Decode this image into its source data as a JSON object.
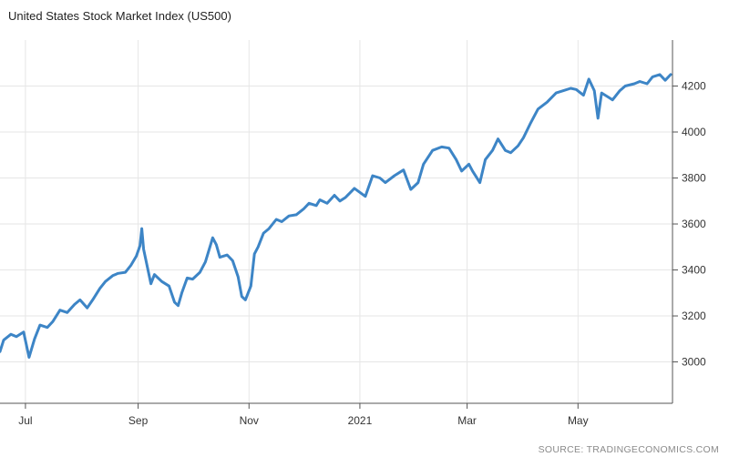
{
  "chart_data": {
    "type": "line",
    "title": "United States Stock Market Index (US500)",
    "source": "SOURCE: TRADINGECONOMICS.COM",
    "xlabel": "",
    "ylabel": "",
    "x_ticks": [
      {
        "label": "Jul",
        "date": "2020-07-01"
      },
      {
        "label": "Sep",
        "date": "2020-09-01"
      },
      {
        "label": "Nov",
        "date": "2020-11-01"
      },
      {
        "label": "2021",
        "date": "2021-01-01"
      },
      {
        "label": "Mar",
        "date": "2021-03-01"
      },
      {
        "label": "May",
        "date": "2021-05-01"
      }
    ],
    "y_ticks": [
      3000,
      3200,
      3400,
      3600,
      3800,
      4000,
      4200
    ],
    "xlim": [
      "2020-06-17",
      "2021-06-22"
    ],
    "ylim": [
      2820,
      4400
    ],
    "grid": true,
    "y_axis_side": "right",
    "line_color": "#3d85c6",
    "series": [
      {
        "x": [
          "2020-06-17",
          "2020-06-19",
          "2020-06-23",
          "2020-06-26",
          "2020-06-30",
          "2020-07-03",
          "2020-07-06",
          "2020-07-09",
          "2020-07-13",
          "2020-07-16",
          "2020-07-20",
          "2020-07-24",
          "2020-07-28",
          "2020-07-31",
          "2020-08-04",
          "2020-08-07",
          "2020-08-11",
          "2020-08-14",
          "2020-08-18",
          "2020-08-21",
          "2020-08-25",
          "2020-08-28",
          "2020-08-31",
          "2020-09-02",
          "2020-09-03",
          "2020-09-04",
          "2020-09-08",
          "2020-09-10",
          "2020-09-14",
          "2020-09-18",
          "2020-09-21",
          "2020-09-23",
          "2020-09-25",
          "2020-09-28",
          "2020-10-01",
          "2020-10-05",
          "2020-10-08",
          "2020-10-12",
          "2020-10-14",
          "2020-10-16",
          "2020-10-20",
          "2020-10-23",
          "2020-10-26",
          "2020-10-28",
          "2020-10-30",
          "2020-11-02",
          "2020-11-04",
          "2020-11-06",
          "2020-11-09",
          "2020-11-12",
          "2020-11-16",
          "2020-11-19",
          "2020-11-23",
          "2020-11-27",
          "2020-12-01",
          "2020-12-04",
          "2020-12-08",
          "2020-12-10",
          "2020-12-14",
          "2020-12-18",
          "2020-12-21",
          "2020-12-24",
          "2020-12-29",
          "2021-01-04",
          "2021-01-08",
          "2021-01-12",
          "2021-01-15",
          "2021-01-20",
          "2021-01-25",
          "2021-01-29",
          "2021-02-02",
          "2021-02-05",
          "2021-02-10",
          "2021-02-15",
          "2021-02-19",
          "2021-02-23",
          "2021-02-26",
          "2021-03-02",
          "2021-03-04",
          "2021-03-08",
          "2021-03-11",
          "2021-03-15",
          "2021-03-18",
          "2021-03-22",
          "2021-03-25",
          "2021-03-29",
          "2021-04-01",
          "2021-04-05",
          "2021-04-09",
          "2021-04-14",
          "2021-04-19",
          "2021-04-23",
          "2021-04-27",
          "2021-04-30",
          "2021-05-04",
          "2021-05-07",
          "2021-05-10",
          "2021-05-12",
          "2021-05-14",
          "2021-05-18",
          "2021-05-20",
          "2021-05-24",
          "2021-05-27",
          "2021-06-01",
          "2021-06-04",
          "2021-06-08",
          "2021-06-11",
          "2021-06-15",
          "2021-06-18",
          "2021-06-21"
        ],
        "y": [
          3045,
          3095,
          3120,
          3110,
          3130,
          3020,
          3100,
          3160,
          3150,
          3175,
          3225,
          3215,
          3250,
          3270,
          3235,
          3270,
          3320,
          3350,
          3375,
          3385,
          3390,
          3420,
          3460,
          3505,
          3580,
          3490,
          3340,
          3380,
          3350,
          3330,
          3260,
          3245,
          3300,
          3365,
          3360,
          3390,
          3435,
          3540,
          3510,
          3455,
          3465,
          3440,
          3370,
          3285,
          3270,
          3330,
          3470,
          3500,
          3560,
          3580,
          3620,
          3610,
          3635,
          3640,
          3665,
          3690,
          3680,
          3705,
          3690,
          3725,
          3700,
          3715,
          3755,
          3720,
          3810,
          3800,
          3780,
          3810,
          3835,
          3750,
          3780,
          3860,
          3920,
          3935,
          3930,
          3880,
          3830,
          3860,
          3830,
          3780,
          3880,
          3920,
          3970,
          3920,
          3910,
          3940,
          3975,
          4040,
          4100,
          4130,
          4170,
          4180,
          4190,
          4185,
          4160,
          4230,
          4180,
          4060,
          4170,
          4150,
          4140,
          4180,
          4200,
          4210,
          4220,
          4210,
          4240,
          4250,
          4225,
          4250
        ]
      }
    ]
  }
}
